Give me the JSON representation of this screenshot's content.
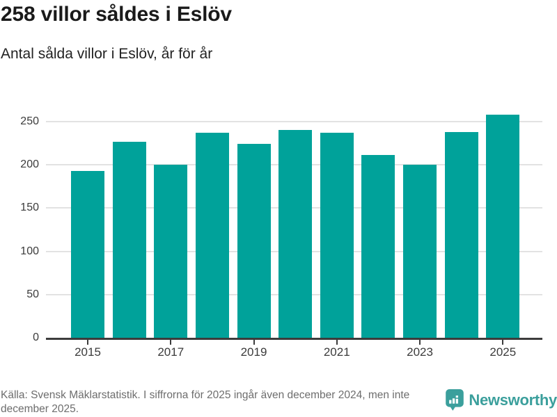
{
  "header": {
    "title": "258 villor såldes i Eslöv",
    "subtitle": "Antal sålda villor i Eslöv, år för år"
  },
  "chart_data": {
    "type": "bar",
    "categories": [
      2015,
      2016,
      2017,
      2018,
      2019,
      2020,
      2021,
      2022,
      2023,
      2024,
      2025
    ],
    "values": [
      193,
      227,
      200,
      237,
      224,
      240,
      237,
      211,
      200,
      238,
      258
    ],
    "title": "258 villor såldes i Eslöv",
    "subtitle": "Antal sålda villor i Eslöv, år för år",
    "xlabel": "",
    "ylabel": "",
    "ylim": [
      0,
      262
    ],
    "yticks": [
      0,
      50,
      100,
      150,
      200,
      250
    ],
    "ytick_labels": [
      "0",
      "50",
      "100",
      "150",
      "200",
      "250"
    ],
    "xtick_years": [
      2015,
      2017,
      2019,
      2021,
      2023,
      2025
    ],
    "xtick_labels": [
      "2015",
      "2017",
      "2019",
      "2021",
      "2023",
      "2025"
    ],
    "grid": true,
    "legend": false
  },
  "colors": {
    "bar": "#00a29a",
    "axis": "#3c3c3c",
    "grid": "#e2e2e2",
    "title_text": "#1a1a1a",
    "tick_text": "#3b3b3b",
    "source_text": "#6d6d6d",
    "logo": "#3b9f9c"
  },
  "footer": {
    "source_text": "Källa: Svensk Mäklarstatistik. I siffrorna för 2025 ingår även december 2024, men inte december 2025.",
    "logo_text": "Newsworthy"
  }
}
